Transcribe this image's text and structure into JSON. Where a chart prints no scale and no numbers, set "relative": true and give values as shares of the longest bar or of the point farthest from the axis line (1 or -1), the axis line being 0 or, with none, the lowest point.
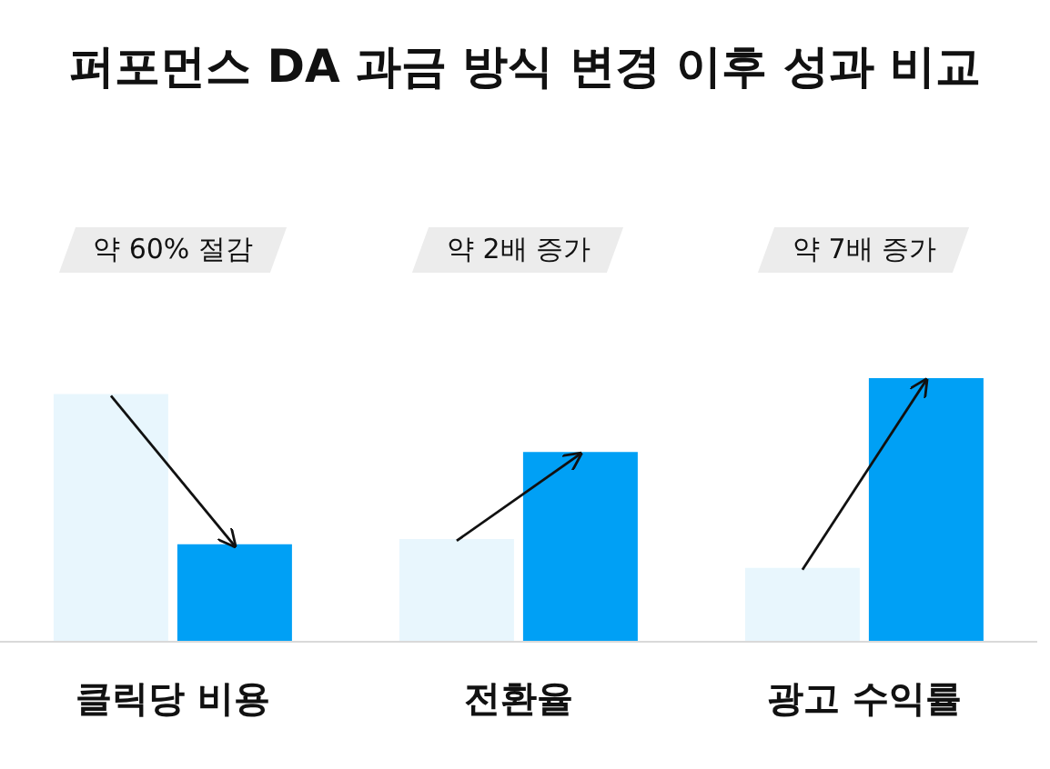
{
  "chart_data": {
    "type": "bar",
    "title": "퍼포먼스 DA 과금 방식 변경 이후 성과 비교",
    "categories": [
      "클릭당 비용",
      "전환율",
      "광고 수익률"
    ],
    "relative": true,
    "series": [
      {
        "color": "#e8f6fd",
        "values": [
          0.94,
          0.39,
          0.28
        ]
      },
      {
        "color": "#00a0f5",
        "values": [
          0.37,
          0.72,
          1
        ]
      }
    ],
    "annotations": [
      "약 60% 절감",
      "약 2배 증가",
      "약 7배 증가"
    ],
    "tick_labels": "x",
    "legend": false,
    "grid": false
  }
}
